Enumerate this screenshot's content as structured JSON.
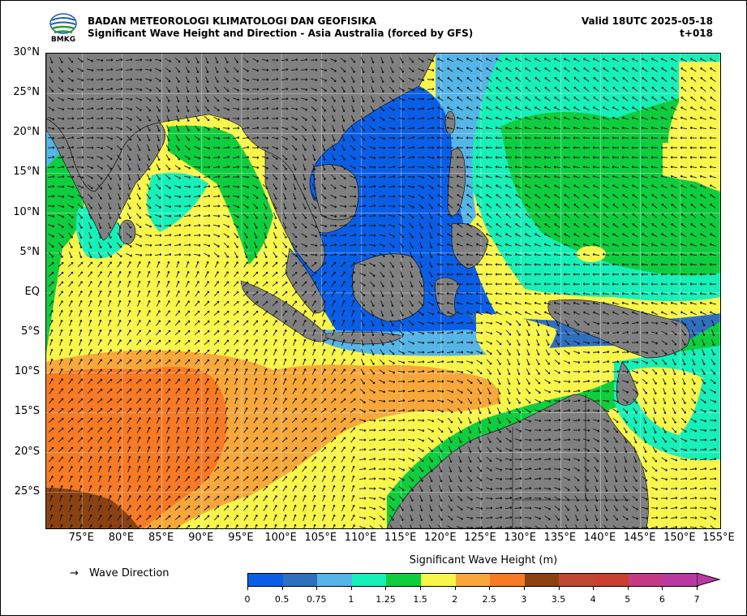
{
  "header": {
    "agency": "BADAN METEOROLOGI KLIMATOLOGI DAN GEOFISIKA",
    "subtitle": "Significant Wave Height and Direction - Asia Australia (forced by GFS)",
    "valid": "Valid 18UTC 2025-05-18",
    "lead": "t+018",
    "logo_text": "BMKG"
  },
  "map": {
    "lat_labels": [
      "30°N",
      "25°N",
      "20°N",
      "15°N",
      "10°N",
      "5°N",
      "EQ",
      "5°S",
      "10°S",
      "15°S",
      "20°S",
      "25°S"
    ],
    "lon_labels": [
      "75°E",
      "80°E",
      "85°E",
      "90°E",
      "95°E",
      "100°E",
      "105°E",
      "110°E",
      "115°E",
      "120°E",
      "125°E",
      "130°E",
      "135°E",
      "140°E",
      "145°E",
      "150°E",
      "155°E"
    ],
    "lat_range": [
      -29.5,
      30
    ],
    "lon_range": [
      70.5,
      155
    ],
    "land_color": "#808080",
    "icon": "wave-direction-arrows"
  },
  "legend": {
    "arrow_symbol": "→",
    "arrow_label": "Wave Direction"
  },
  "colorbar": {
    "title": "Significant Wave Height (m)",
    "ticks": [
      "0",
      "0.5",
      "0.75",
      "1",
      "1.25",
      "1.5",
      "2",
      "2.5",
      "3",
      "3.5",
      "4",
      "5",
      "6",
      "7"
    ],
    "colors": [
      "#0a5ee6",
      "#2f6fbe",
      "#55b5e6",
      "#16f0b9",
      "#0ece3f",
      "#f8f64a",
      "#f8a83a",
      "#f77a25",
      "#8a4212",
      "#c04833",
      "#c9402e",
      "#c53a84",
      "#b83aa0"
    ]
  }
}
